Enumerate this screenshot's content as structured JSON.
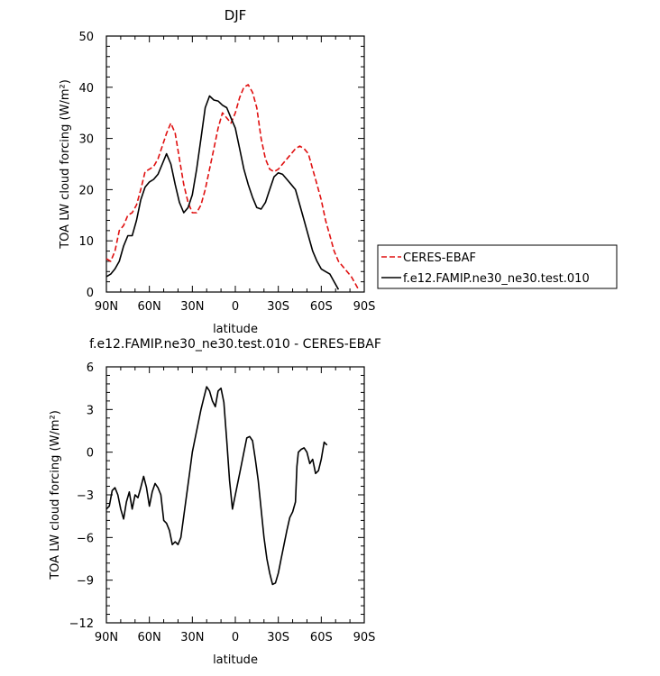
{
  "chart_data": [
    {
      "type": "line",
      "title": "DJF",
      "xlabel": "latitude",
      "ylabel": "TOA LW cloud forcing (W/m²)",
      "xlim": [
        90,
        -90
      ],
      "ylim": [
        0,
        50
      ],
      "x_ticks": [
        {
          "value": 90,
          "label": "90N"
        },
        {
          "value": 60,
          "label": "60N"
        },
        {
          "value": 30,
          "label": "30N"
        },
        {
          "value": 0,
          "label": "0"
        },
        {
          "value": -30,
          "label": "30S"
        },
        {
          "value": -60,
          "label": "60S"
        },
        {
          "value": -90,
          "label": "90S"
        }
      ],
      "y_ticks": [
        0,
        10,
        20,
        30,
        40,
        50
      ],
      "grid": false,
      "legend": {
        "placement": "right",
        "entries": [
          "CERES-EBAF",
          "f.e12.FAMIP.ne30_ne30.test.010"
        ]
      },
      "series": [
        {
          "name": "CERES-EBAF",
          "color": "#e01010",
          "dash": "dashed",
          "points": [
            [
              90,
              6.5
            ],
            [
              87,
              6
            ],
            [
              84,
              8
            ],
            [
              81,
              12
            ],
            [
              78,
              13
            ],
            [
              75,
              15
            ],
            [
              72,
              15.5
            ],
            [
              69,
              17
            ],
            [
              66,
              20
            ],
            [
              63,
              23.5
            ],
            [
              60,
              24
            ],
            [
              57,
              24.5
            ],
            [
              54,
              26
            ],
            [
              51,
              28.5
            ],
            [
              48,
              31
            ],
            [
              45,
              33
            ],
            [
              42,
              31
            ],
            [
              39,
              26
            ],
            [
              36,
              21
            ],
            [
              33,
              17.5
            ],
            [
              30,
              15.5
            ],
            [
              27,
              15.5
            ],
            [
              24,
              17
            ],
            [
              21,
              20
            ],
            [
              18,
              24
            ],
            [
              15,
              28
            ],
            [
              12,
              32
            ],
            [
              9,
              35
            ],
            [
              6,
              34
            ],
            [
              3,
              33
            ],
            [
              0,
              35
            ],
            [
              -3,
              38
            ],
            [
              -6,
              40
            ],
            [
              -9,
              40.5
            ],
            [
              -12,
              39
            ],
            [
              -15,
              36
            ],
            [
              -18,
              30
            ],
            [
              -21,
              26
            ],
            [
              -24,
              24
            ],
            [
              -27,
              23.5
            ],
            [
              -30,
              24
            ],
            [
              -33,
              25
            ],
            [
              -36,
              26
            ],
            [
              -39,
              27
            ],
            [
              -42,
              28
            ],
            [
              -45,
              28.5
            ],
            [
              -48,
              28
            ],
            [
              -51,
              27
            ],
            [
              -54,
              24
            ],
            [
              -57,
              21
            ],
            [
              -60,
              18
            ],
            [
              -63,
              14
            ],
            [
              -66,
              11
            ],
            [
              -69,
              8
            ],
            [
              -72,
              6
            ],
            [
              -75,
              5
            ],
            [
              -78,
              4
            ],
            [
              -81,
              3
            ],
            [
              -84,
              1.5
            ],
            [
              -86,
              0.5
            ]
          ]
        },
        {
          "name": "f.e12.FAMIP.ne30_ne30.test.010",
          "color": "#000000",
          "dash": "solid",
          "points": [
            [
              90,
              3
            ],
            [
              87,
              3.5
            ],
            [
              84,
              4.5
            ],
            [
              81,
              6
            ],
            [
              78,
              9
            ],
            [
              75,
              11
            ],
            [
              72,
              11
            ],
            [
              69,
              14
            ],
            [
              66,
              18
            ],
            [
              63,
              20.5
            ],
            [
              60,
              21.5
            ],
            [
              57,
              22
            ],
            [
              54,
              23
            ],
            [
              51,
              25
            ],
            [
              48,
              27
            ],
            [
              45,
              25
            ],
            [
              42,
              21
            ],
            [
              39,
              17.5
            ],
            [
              36,
              15.5
            ],
            [
              33,
              16.5
            ],
            [
              30,
              19
            ],
            [
              27,
              24
            ],
            [
              24,
              30
            ],
            [
              21,
              36
            ],
            [
              18,
              38.3
            ],
            [
              15,
              37.5
            ],
            [
              12,
              37.3
            ],
            [
              9,
              36.5
            ],
            [
              6,
              36
            ],
            [
              3,
              34
            ],
            [
              0,
              32
            ],
            [
              -3,
              28
            ],
            [
              -6,
              24
            ],
            [
              -9,
              21
            ],
            [
              -12,
              18.5
            ],
            [
              -15,
              16.5
            ],
            [
              -18,
              16.2
            ],
            [
              -21,
              17.5
            ],
            [
              -24,
              20
            ],
            [
              -27,
              22.5
            ],
            [
              -30,
              23.3
            ],
            [
              -33,
              23
            ],
            [
              -36,
              22
            ],
            [
              -39,
              21
            ],
            [
              -42,
              20
            ],
            [
              -45,
              17
            ],
            [
              -48,
              14
            ],
            [
              -51,
              11
            ],
            [
              -54,
              8
            ],
            [
              -57,
              6
            ],
            [
              -60,
              4.5
            ],
            [
              -63,
              4
            ],
            [
              -66,
              3.5
            ],
            [
              -69,
              2
            ],
            [
              -72,
              0.5
            ]
          ]
        }
      ]
    },
    {
      "type": "line",
      "title": "f.e12.FAMIP.ne30_ne30.test.010 - CERES-EBAF",
      "xlabel": "latitude",
      "ylabel": "TOA LW cloud forcing (W/m²)",
      "xlim": [
        90,
        -90
      ],
      "ylim": [
        -12,
        6
      ],
      "x_ticks": [
        {
          "value": 90,
          "label": "90N"
        },
        {
          "value": 60,
          "label": "60N"
        },
        {
          "value": 30,
          "label": "30N"
        },
        {
          "value": 0,
          "label": "0"
        },
        {
          "value": -30,
          "label": "30S"
        },
        {
          "value": -60,
          "label": "60S"
        },
        {
          "value": -90,
          "label": "90S"
        }
      ],
      "y_ticks": [
        -12,
        -9,
        -6,
        -3,
        0,
        3,
        6
      ],
      "grid": false,
      "series": [
        {
          "color": "#000000",
          "dash": "solid",
          "points": [
            [
              90,
              -4
            ],
            [
              88,
              -3.8
            ],
            [
              86,
              -2.7
            ],
            [
              84,
              -2.5
            ],
            [
              82,
              -3
            ],
            [
              80,
              -4
            ],
            [
              78,
              -4.7
            ],
            [
              76,
              -3.5
            ],
            [
              74,
              -2.8
            ],
            [
              72,
              -4
            ],
            [
              70,
              -3
            ],
            [
              68,
              -3.2
            ],
            [
              66,
              -2.5
            ],
            [
              64,
              -1.7
            ],
            [
              62,
              -2.5
            ],
            [
              60,
              -3.8
            ],
            [
              58,
              -2.8
            ],
            [
              56,
              -2.2
            ],
            [
              54,
              -2.5
            ],
            [
              52,
              -3
            ],
            [
              50,
              -4.8
            ],
            [
              48,
              -5
            ],
            [
              46,
              -5.5
            ],
            [
              44,
              -6.5
            ],
            [
              42,
              -6.3
            ],
            [
              40,
              -6.5
            ],
            [
              38,
              -6
            ],
            [
              36,
              -4.5
            ],
            [
              34,
              -3
            ],
            [
              32,
              -1.5
            ],
            [
              30,
              0
            ],
            [
              28,
              1
            ],
            [
              26,
              2
            ],
            [
              24,
              3
            ],
            [
              22,
              3.8
            ],
            [
              20,
              4.6
            ],
            [
              18,
              4.3
            ],
            [
              16,
              3.6
            ],
            [
              14,
              3.2
            ],
            [
              12,
              4.3
            ],
            [
              10,
              4.5
            ],
            [
              8,
              3.5
            ],
            [
              6,
              0.8
            ],
            [
              4,
              -2
            ],
            [
              3,
              -3
            ],
            [
              2,
              -4
            ],
            [
              0,
              -3
            ],
            [
              -2,
              -2
            ],
            [
              -4,
              -1
            ],
            [
              -6,
              0
            ],
            [
              -8,
              1
            ],
            [
              -10,
              1.1
            ],
            [
              -12,
              0.8
            ],
            [
              -14,
              -0.5
            ],
            [
              -16,
              -2
            ],
            [
              -18,
              -4
            ],
            [
              -20,
              -6
            ],
            [
              -22,
              -7.5
            ],
            [
              -24,
              -8.5
            ],
            [
              -26,
              -9.3
            ],
            [
              -28,
              -9.2
            ],
            [
              -30,
              -8.5
            ],
            [
              -32,
              -7.5
            ],
            [
              -34,
              -6.5
            ],
            [
              -36,
              -5.5
            ],
            [
              -38,
              -4.6
            ],
            [
              -40,
              -4.2
            ],
            [
              -42,
              -3.5
            ],
            [
              -43,
              -1
            ],
            [
              -44,
              0
            ],
            [
              -46,
              0.2
            ],
            [
              -48,
              0.3
            ],
            [
              -50,
              0
            ],
            [
              -52,
              -0.8
            ],
            [
              -54,
              -0.5
            ],
            [
              -56,
              -1.5
            ],
            [
              -58,
              -1.3
            ],
            [
              -60,
              -0.5
            ],
            [
              -62,
              0.7
            ],
            [
              -64,
              0.5
            ]
          ]
        }
      ]
    }
  ]
}
